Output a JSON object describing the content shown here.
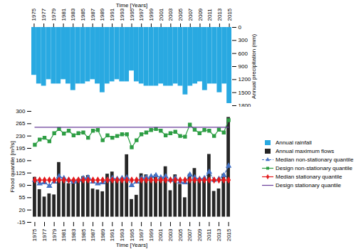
{
  "chart_data": [
    {
      "type": "bar",
      "xlabel": "Time [Years]",
      "ylabel": "Annual precipitation (mm)",
      "x": [
        1975,
        1976,
        1977,
        1978,
        1979,
        1980,
        1981,
        1982,
        1983,
        1984,
        1985,
        1986,
        1987,
        1988,
        1989,
        1990,
        1991,
        1992,
        1993,
        1994,
        1995,
        1996,
        1997,
        1998,
        1999,
        2000,
        2001,
        2002,
        2003,
        2004,
        2005,
        2006,
        2007,
        2008,
        2009,
        2010,
        2011,
        2012,
        2013,
        2014,
        2015
      ],
      "xticks": [
        1975,
        1977,
        1979,
        1981,
        1983,
        1985,
        1987,
        1989,
        1991,
        1993,
        1995,
        1997,
        1999,
        2001,
        2003,
        2005,
        2007,
        2009,
        2011,
        2013,
        2015
      ],
      "ylim": [
        1800,
        0
      ],
      "yticks": [
        0,
        300,
        600,
        900,
        1200,
        1500,
        1800
      ],
      "legend": "right",
      "series": [
        {
          "name": "Annual rainfall",
          "color": "#29a9e1",
          "type": "bar",
          "values": [
            1100,
            1300,
            1350,
            1200,
            1300,
            1300,
            1200,
            1300,
            1450,
            1300,
            1300,
            1250,
            1200,
            1300,
            1500,
            1300,
            1250,
            1200,
            1250,
            1250,
            1000,
            1250,
            1300,
            1350,
            1350,
            1350,
            1300,
            1350,
            1350,
            1300,
            1350,
            1550,
            1350,
            1300,
            1250,
            1450,
            1300,
            1300,
            1500,
            1300,
            1750
          ]
        }
      ]
    },
    {
      "type": "bar",
      "xlabel": "Time [Years]",
      "ylabel": "Flood quantile [m³/s]",
      "x": [
        1975,
        1976,
        1977,
        1978,
        1979,
        1980,
        1981,
        1982,
        1983,
        1984,
        1985,
        1986,
        1987,
        1988,
        1989,
        1990,
        1991,
        1992,
        1993,
        1994,
        1995,
        1996,
        1997,
        1998,
        1999,
        2000,
        2001,
        2002,
        2003,
        2004,
        2005,
        2006,
        2007,
        2008,
        2009,
        2010,
        2011,
        2012,
        2013,
        2014,
        2015
      ],
      "xticks": [
        1975,
        1977,
        1979,
        1981,
        1983,
        1985,
        1987,
        1989,
        1991,
        1993,
        1995,
        1997,
        1999,
        2001,
        2003,
        2005,
        2007,
        2009,
        2011,
        2013,
        2015
      ],
      "ylim": [
        -15,
        300
      ],
      "yticks": [
        -15,
        20,
        55,
        90,
        125,
        160,
        195,
        230,
        265,
        300
      ],
      "legend": "right",
      "series": [
        {
          "name": "Annual maximum flows",
          "color": "#262626",
          "type": "bar",
          "values": [
            113,
            78,
            57,
            66,
            63,
            155,
            110,
            95,
            103,
            107,
            115,
            118,
            80,
            77,
            72,
            122,
            128,
            103,
            105,
            177,
            50,
            62,
            123,
            120,
            110,
            120,
            113,
            143,
            75,
            120,
            93,
            55,
            122,
            138,
            105,
            108,
            178,
            73,
            80,
            122,
            283
          ]
        },
        {
          "name": "Median non-stationary quantile",
          "color": "#4472c4",
          "type": "line",
          "marker": "triangle",
          "line_style": "dashed",
          "values": [
            105,
            95,
            98,
            88,
            100,
            115,
            110,
            105,
            100,
            105,
            110,
            112,
            100,
            95,
            98,
            105,
            110,
            108,
            110,
            112,
            90,
            100,
            110,
            112,
            115,
            118,
            112,
            115,
            105,
            110,
            100,
            98,
            120,
            112,
            108,
            110,
            128,
            105,
            108,
            118,
            145
          ]
        },
        {
          "name": "Design non-stationary quantile",
          "color": "#2e9e44",
          "type": "line",
          "marker": "square",
          "line_style": "solid",
          "values": [
            205,
            220,
            225,
            215,
            238,
            250,
            237,
            245,
            232,
            238,
            240,
            225,
            245,
            247,
            218,
            232,
            225,
            230,
            235,
            235,
            198,
            218,
            235,
            240,
            247,
            250,
            245,
            232,
            238,
            242,
            230,
            228,
            262,
            248,
            238,
            247,
            245,
            230,
            248,
            240,
            275
          ]
        },
        {
          "name": "Median stationary quantile",
          "color": "#e31a1c",
          "type": "line",
          "marker": "diamond",
          "line_style": "solid",
          "values": [
            105,
            105,
            105,
            105,
            105,
            105,
            105,
            105,
            105,
            105,
            105,
            105,
            105,
            105,
            105,
            105,
            105,
            105,
            105,
            105,
            105,
            105,
            105,
            105,
            105,
            105,
            105,
            105,
            105,
            105,
            105,
            105,
            105,
            105,
            105,
            105,
            105,
            105,
            105,
            105,
            105
          ]
        },
        {
          "name": "Design stationary quantile",
          "color": "#6a3d9a",
          "type": "line",
          "line_style": "solid",
          "values": [
            255,
            255,
            255,
            255,
            255,
            255,
            255,
            255,
            255,
            255,
            255,
            255,
            255,
            255,
            255,
            255,
            255,
            255,
            255,
            255,
            255,
            255,
            255,
            255,
            255,
            255,
            255,
            255,
            255,
            255,
            255,
            255,
            255,
            255,
            255,
            255,
            255,
            255,
            255,
            255,
            255
          ]
        }
      ]
    }
  ]
}
